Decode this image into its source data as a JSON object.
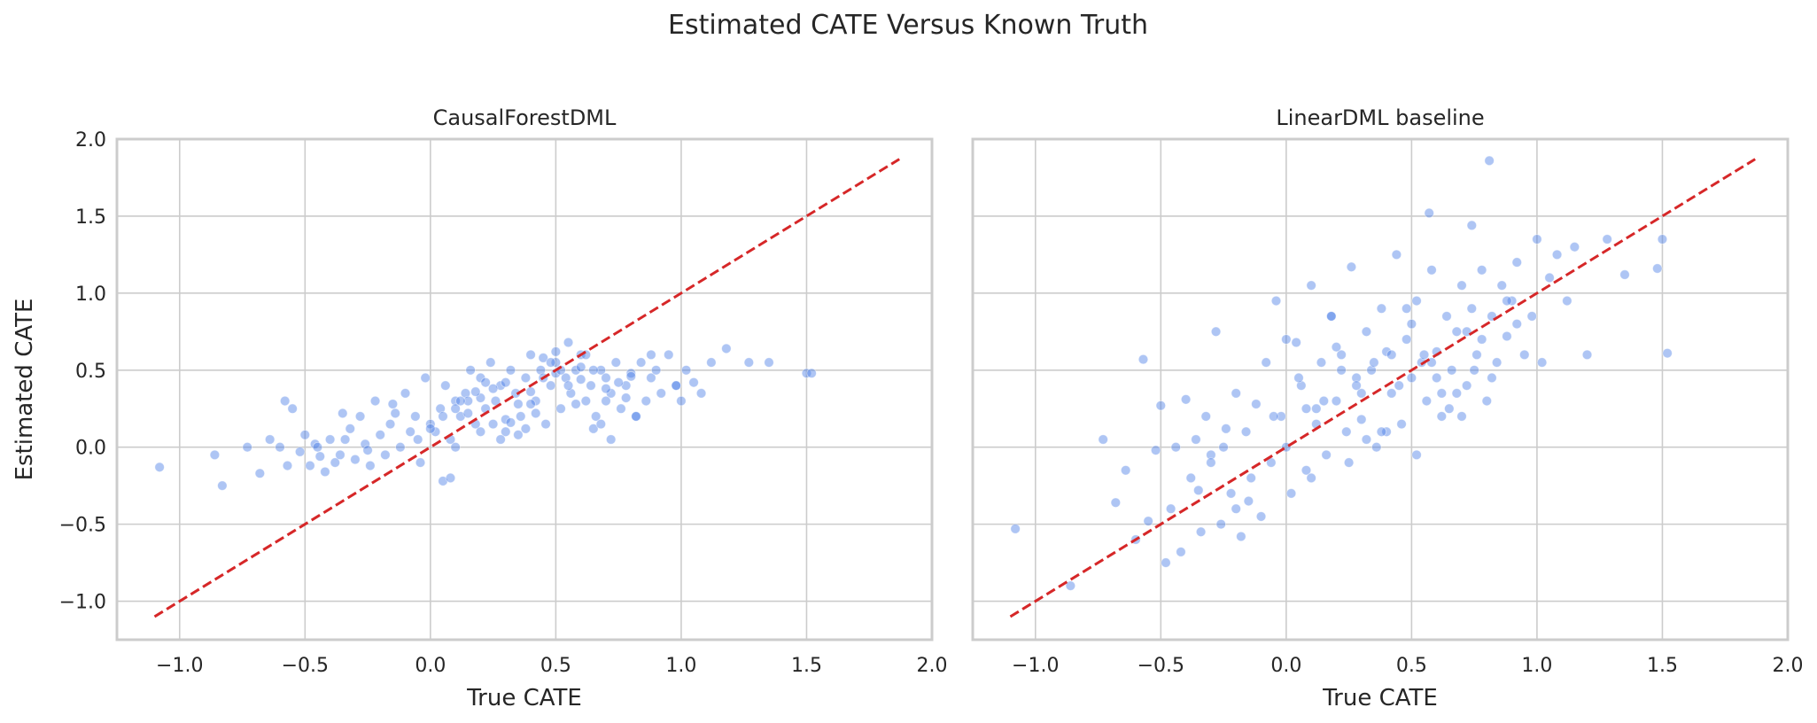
{
  "figure": {
    "title": "Estimated CATE Versus Known Truth"
  },
  "colors": {
    "point": "#4c7fe6",
    "reference_line": "#d62728",
    "grid": "#cccccc",
    "spine": "#cccccc",
    "background": "#ffffff"
  },
  "chart_data": [
    {
      "type": "scatter",
      "title": "CausalForestDML",
      "xlabel": "True CATE",
      "ylabel": "Estimated CATE",
      "xlim": [
        -1.25,
        2.0
      ],
      "ylim": [
        -1.25,
        2.0
      ],
      "xticks": [
        -1.0,
        -0.5,
        0.0,
        0.5,
        1.0,
        1.5,
        2.0
      ],
      "yticks": [
        -1.0,
        -0.5,
        0.0,
        0.5,
        1.0,
        1.5,
        2.0
      ],
      "xtick_labels": [
        "−1.0",
        "−0.5",
        "0.0",
        "0.5",
        "1.0",
        "1.5",
        "2.0"
      ],
      "ytick_labels": [
        "−1.0",
        "−0.5",
        "0.0",
        "0.5",
        "1.0",
        "1.5",
        "2.0"
      ],
      "grid": true,
      "reference_line": {
        "x": [
          -1.1,
          1.87
        ],
        "y": [
          -1.1,
          1.87
        ],
        "style": "dashed"
      },
      "x": [
        -1.08,
        -0.86,
        -0.83,
        -0.73,
        -0.68,
        -0.64,
        -0.6,
        -0.58,
        -0.57,
        -0.55,
        -0.52,
        -0.5,
        -0.48,
        -0.46,
        -0.44,
        -0.42,
        -0.4,
        -0.38,
        -0.36,
        -0.34,
        -0.32,
        -0.3,
        -0.28,
        -0.26,
        -0.24,
        -0.22,
        -0.2,
        -0.18,
        -0.16,
        -0.14,
        -0.12,
        -0.1,
        -0.08,
        -0.06,
        -0.04,
        -0.02,
        0.0,
        0.02,
        0.04,
        0.06,
        0.08,
        0.1,
        0.12,
        0.14,
        0.16,
        0.18,
        0.2,
        0.22,
        0.24,
        0.26,
        0.28,
        0.3,
        0.32,
        0.34,
        0.36,
        0.38,
        0.4,
        0.42,
        0.44,
        0.46,
        0.48,
        0.5,
        0.52,
        0.54,
        0.56,
        0.58,
        0.6,
        0.62,
        0.64,
        0.66,
        0.68,
        0.7,
        0.72,
        0.74,
        0.76,
        0.78,
        0.8,
        0.82,
        0.84,
        0.86,
        0.88,
        0.9,
        0.92,
        0.95,
        0.98,
        1.0,
        1.02,
        1.05,
        1.08,
        1.12,
        1.18,
        1.27,
        1.35,
        1.5,
        1.52,
        -0.05,
        0.0,
        0.05,
        0.1,
        0.15,
        0.2,
        0.25,
        0.3,
        0.35,
        0.4,
        0.45,
        0.5,
        0.55,
        0.6,
        0.65,
        0.7,
        0.75,
        0.8,
        0.1,
        0.2,
        0.3,
        0.4,
        0.5,
        0.6,
        0.7,
        0.15,
        0.25,
        0.35,
        0.45,
        0.55,
        0.65,
        -0.15,
        -0.25,
        0.05,
        0.12,
        0.22,
        0.32,
        0.42,
        0.52,
        0.62,
        0.72,
        0.82,
        -0.35,
        -0.45,
        0.08,
        0.18,
        0.28,
        0.38,
        0.48,
        0.58,
        0.68,
        0.78,
        0.88,
        0.98
      ],
      "y": [
        -0.13,
        -0.05,
        -0.25,
        0.0,
        -0.17,
        0.05,
        0.0,
        0.3,
        -0.12,
        0.25,
        -0.03,
        0.08,
        -0.12,
        0.02,
        -0.06,
        -0.16,
        0.05,
        -0.1,
        -0.05,
        0.05,
        0.12,
        -0.08,
        0.2,
        0.02,
        -0.12,
        0.3,
        0.08,
        -0.05,
        0.15,
        0.22,
        0.0,
        0.35,
        0.1,
        0.2,
        -0.1,
        0.45,
        0.15,
        0.1,
        0.25,
        0.4,
        0.05,
        0.3,
        0.2,
        0.35,
        0.5,
        0.15,
        0.45,
        0.25,
        0.55,
        0.3,
        0.4,
        0.1,
        0.5,
        0.35,
        0.2,
        0.45,
        0.6,
        0.3,
        0.5,
        0.15,
        0.4,
        0.55,
        0.25,
        0.45,
        0.35,
        0.5,
        0.6,
        0.3,
        0.4,
        0.2,
        0.5,
        0.45,
        0.35,
        0.55,
        0.25,
        0.4,
        0.48,
        0.2,
        0.55,
        0.3,
        0.45,
        0.5,
        0.35,
        0.6,
        0.4,
        0.3,
        0.5,
        0.42,
        0.35,
        0.55,
        0.64,
        0.55,
        0.55,
        0.48,
        0.48,
        0.05,
        0.12,
        0.2,
        0.25,
        0.3,
        0.32,
        0.38,
        0.42,
        0.28,
        0.36,
        0.45,
        0.48,
        0.4,
        0.44,
        0.5,
        0.38,
        0.42,
        0.46,
        0.0,
        0.1,
        0.18,
        0.28,
        0.62,
        0.52,
        0.3,
        0.22,
        0.15,
        0.08,
        0.58,
        0.68,
        0.12,
        0.28,
        -0.02,
        -0.22,
        0.3,
        0.42,
        0.16,
        0.22,
        0.5,
        0.6,
        0.05,
        0.2,
        0.22,
        0.0,
        -0.2,
        0.36,
        0.05,
        0.12,
        0.55,
        0.28,
        0.15,
        0.32,
        0.6,
        0.4
      ],
      "marker_color": "#4c7fe6",
      "marker_alpha": 0.45
    },
    {
      "type": "scatter",
      "title": "LinearDML baseline",
      "xlabel": "True CATE",
      "ylabel": "",
      "xlim": [
        -1.25,
        2.0
      ],
      "ylim": [
        -1.25,
        2.0
      ],
      "xticks": [
        -1.0,
        -0.5,
        0.0,
        0.5,
        1.0,
        1.5,
        2.0
      ],
      "yticks": [
        -1.0,
        -0.5,
        0.0,
        0.5,
        1.0,
        1.5,
        2.0
      ],
      "xtick_labels": [
        "−1.0",
        "−0.5",
        "0.0",
        "0.5",
        "1.0",
        "1.5",
        "2.0"
      ],
      "ytick_labels": [],
      "grid": true,
      "reference_line": {
        "x": [
          -1.1,
          1.87
        ],
        "y": [
          -1.1,
          1.87
        ],
        "style": "dashed"
      },
      "x": [
        -1.08,
        -0.86,
        -0.73,
        -0.68,
        -0.64,
        -0.6,
        -0.57,
        -0.55,
        -0.52,
        -0.5,
        -0.48,
        -0.46,
        -0.44,
        -0.42,
        -0.4,
        -0.38,
        -0.36,
        -0.34,
        -0.32,
        -0.3,
        -0.28,
        -0.26,
        -0.24,
        -0.22,
        -0.2,
        -0.18,
        -0.16,
        -0.14,
        -0.12,
        -0.1,
        -0.08,
        -0.06,
        -0.04,
        -0.02,
        0.0,
        0.02,
        0.04,
        0.06,
        0.08,
        0.1,
        0.12,
        0.14,
        0.16,
        0.18,
        0.2,
        0.22,
        0.24,
        0.26,
        0.28,
        0.3,
        0.32,
        0.34,
        0.36,
        0.38,
        0.4,
        0.42,
        0.44,
        0.46,
        0.48,
        0.5,
        0.52,
        0.54,
        0.56,
        0.58,
        0.6,
        0.62,
        0.64,
        0.66,
        0.68,
        0.7,
        0.72,
        0.74,
        0.76,
        0.78,
        0.8,
        0.82,
        0.84,
        0.86,
        0.88,
        0.9,
        0.92,
        0.95,
        0.98,
        1.0,
        1.02,
        1.05,
        1.08,
        1.12,
        1.15,
        1.2,
        1.28,
        1.35,
        1.48,
        1.5,
        1.52,
        0.57,
        0.74,
        0.81,
        -0.05,
        0.05,
        0.15,
        0.25,
        0.35,
        0.45,
        0.55,
        0.65,
        0.75,
        0.1,
        0.2,
        0.3,
        0.4,
        0.5,
        0.6,
        0.7,
        -0.15,
        -0.25,
        -0.35,
        0.0,
        0.12,
        0.22,
        0.32,
        0.42,
        0.52,
        0.62,
        0.72,
        0.82,
        0.92,
        -0.2,
        -0.3,
        0.08,
        0.18,
        0.28,
        0.38,
        0.48,
        0.58,
        0.68,
        0.78,
        0.88
      ],
      "y": [
        -0.53,
        -0.9,
        0.05,
        -0.36,
        -0.15,
        -0.6,
        0.57,
        -0.48,
        -0.02,
        0.27,
        -0.75,
        -0.4,
        0.0,
        -0.68,
        0.31,
        -0.2,
        0.05,
        -0.55,
        0.2,
        -0.05,
        0.75,
        -0.5,
        0.12,
        -0.3,
        0.35,
        -0.58,
        0.1,
        -0.2,
        0.28,
        -0.45,
        0.55,
        -0.1,
        0.95,
        0.2,
        0.0,
        -0.3,
        0.68,
        0.4,
        -0.15,
        1.05,
        0.25,
        0.55,
        -0.05,
        0.85,
        0.3,
        0.6,
        0.1,
        1.17,
        0.45,
        0.18,
        0.75,
        0.5,
        0.0,
        0.9,
        0.62,
        0.35,
        1.25,
        0.15,
        0.7,
        0.45,
        0.95,
        0.55,
        0.3,
        1.15,
        0.62,
        0.2,
        0.85,
        0.5,
        0.75,
        1.05,
        0.4,
        0.9,
        0.6,
        1.15,
        0.3,
        0.85,
        0.55,
        1.05,
        0.72,
        0.95,
        1.2,
        0.6,
        0.85,
        1.35,
        0.55,
        1.1,
        1.25,
        0.95,
        1.3,
        0.6,
        1.35,
        1.12,
        1.16,
        1.35,
        0.61,
        1.52,
        1.44,
        1.86,
        0.2,
        0.45,
        0.3,
        -0.1,
        0.55,
        0.4,
        0.6,
        0.25,
        0.5,
        -0.2,
        0.65,
        0.35,
        0.1,
        0.8,
        0.45,
        0.2,
        -0.35,
        0.0,
        -0.28,
        0.7,
        0.15,
        0.5,
        0.05,
        0.6,
        -0.05,
        0.35,
        0.75,
        0.45,
        0.8,
        -0.4,
        -0.1,
        0.25,
        0.85,
        0.4,
        0.1,
        0.9,
        0.55,
        0.35,
        0.7,
        0.95
      ],
      "marker_color": "#4c7fe6",
      "marker_alpha": 0.45
    }
  ]
}
